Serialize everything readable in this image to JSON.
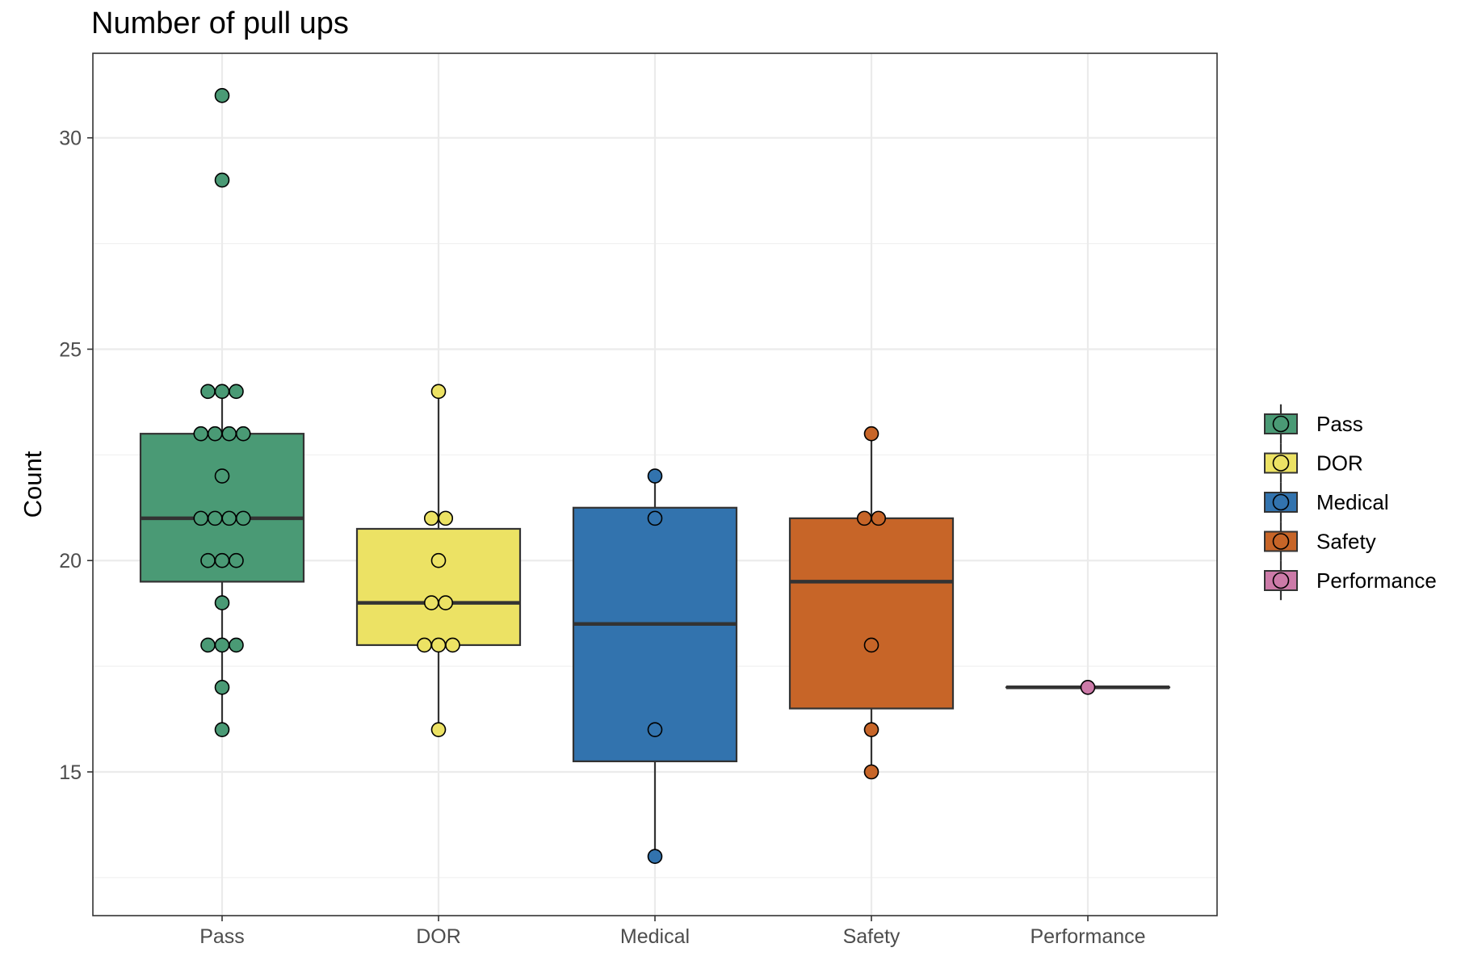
{
  "chart_data": {
    "type": "box",
    "title": "Number of pull ups",
    "xlabel": "",
    "ylabel": "Count",
    "ylim": [
      11.6,
      32.0
    ],
    "y_ticks": [
      15,
      20,
      25,
      30
    ],
    "grid": true,
    "legend_position": "right",
    "categories": [
      "Pass",
      "DOR",
      "Medical",
      "Safety",
      "Performance"
    ],
    "series": [
      {
        "name": "Pass",
        "color": "#4a9a75",
        "box": {
          "lower_whisker": 16,
          "q1": 19.5,
          "median": 21,
          "q3": 23,
          "upper_whisker": 24
        },
        "points": [
          31,
          29,
          24,
          24,
          24,
          23,
          23,
          23,
          23,
          22,
          21,
          21,
          21,
          21,
          20,
          20,
          20,
          19,
          18,
          18,
          18,
          17,
          16
        ]
      },
      {
        "name": "DOR",
        "color": "#ece264",
        "box": {
          "lower_whisker": 16,
          "q1": 18,
          "median": 19,
          "q3": 20.75,
          "upper_whisker": 24
        },
        "points": [
          24,
          21,
          21,
          20,
          19,
          19,
          18,
          18,
          18,
          16
        ]
      },
      {
        "name": "Medical",
        "color": "#3273ae",
        "box": {
          "lower_whisker": 13,
          "q1": 15.25,
          "median": 18.5,
          "q3": 21.25,
          "upper_whisker": 22
        },
        "points": [
          22,
          21,
          16,
          13
        ]
      },
      {
        "name": "Safety",
        "color": "#c76528",
        "box": {
          "lower_whisker": 15,
          "q1": 16.5,
          "median": 19.5,
          "q3": 21,
          "upper_whisker": 23
        },
        "points": [
          23,
          21,
          21,
          18,
          16,
          15
        ]
      },
      {
        "name": "Performance",
        "color": "#cc7aa8",
        "box": {
          "lower_whisker": 17,
          "q1": 17,
          "median": 17,
          "q3": 17,
          "upper_whisker": 17
        },
        "points": [
          17
        ]
      }
    ]
  }
}
